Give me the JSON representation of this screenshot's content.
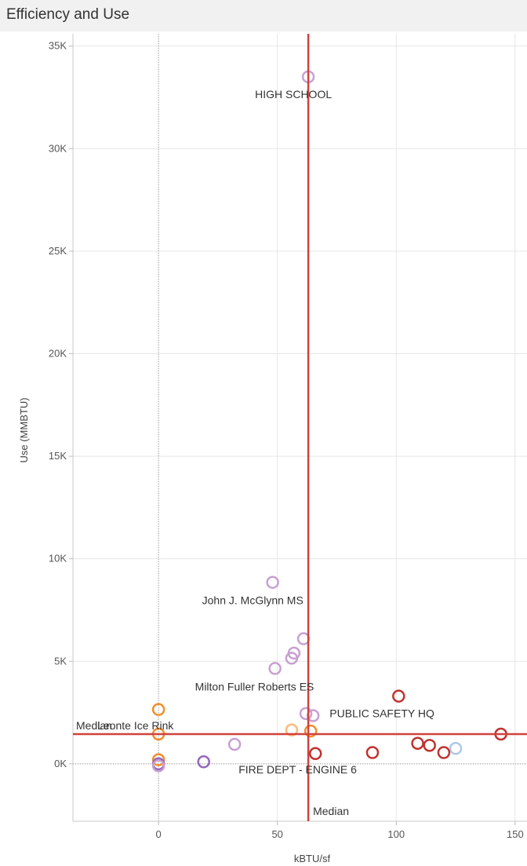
{
  "header": {
    "title": "Efficiency and Use"
  },
  "chart_data": {
    "type": "scatter",
    "title": "Efficiency and Use",
    "xlabel": "kBTU/sf",
    "ylabel": "Use (MMBTU)",
    "xlim": [
      -36,
      155
    ],
    "ylim": [
      -2800,
      35600
    ],
    "x_ticks": [
      {
        "value": 0,
        "label": "0"
      },
      {
        "value": 50,
        "label": "50"
      },
      {
        "value": 100,
        "label": "100"
      },
      {
        "value": 150,
        "label": "150"
      }
    ],
    "y_ticks": [
      {
        "value": 0,
        "label": "0K"
      },
      {
        "value": 5000,
        "label": "5K"
      },
      {
        "value": 10000,
        "label": "10K"
      },
      {
        "value": 15000,
        "label": "15K"
      },
      {
        "value": 20000,
        "label": "20K"
      },
      {
        "value": 25000,
        "label": "25K"
      },
      {
        "value": 30000,
        "label": "30K"
      },
      {
        "value": 35000,
        "label": "35K"
      }
    ],
    "grid": true,
    "median_lines": {
      "x": 63,
      "y": 1450,
      "label": "Median",
      "color": "#d0423c"
    },
    "points": [
      {
        "x": 63,
        "y": 33500,
        "color": "#c8a0d2",
        "label": "HIGH SCHOOL"
      },
      {
        "x": 48,
        "y": 8850,
        "color": "#c8a0d2",
        "label": "John J. McGlynn MS"
      },
      {
        "x": 61,
        "y": 6100,
        "color": "#c8a0d2",
        "label": ""
      },
      {
        "x": 57,
        "y": 5400,
        "color": "#c8a0d2",
        "label": ""
      },
      {
        "x": 56,
        "y": 5150,
        "color": "#c8a0d2",
        "label": ""
      },
      {
        "x": 49,
        "y": 4650,
        "color": "#c8a0d2",
        "label": "Milton Fuller Roberts ES"
      },
      {
        "x": 101,
        "y": 3300,
        "color": "#c0322e",
        "label": "PUBLIC SAFETY HQ"
      },
      {
        "x": 0,
        "y": 2650,
        "color": "#f28e2b",
        "label": ""
      },
      {
        "x": 62,
        "y": 2450,
        "color": "#c8a0d2",
        "label": ""
      },
      {
        "x": 65,
        "y": 2350,
        "color": "#c8a0d2",
        "label": ""
      },
      {
        "x": 56,
        "y": 1650,
        "color": "#ffbb78",
        "label": ""
      },
      {
        "x": 64,
        "y": 1600,
        "color": "#f28e2b",
        "label": ""
      },
      {
        "x": 144,
        "y": 1450,
        "color": "#c0322e",
        "label": ""
      },
      {
        "x": 109,
        "y": 1000,
        "color": "#c0322e",
        "label": ""
      },
      {
        "x": 114,
        "y": 900,
        "color": "#c0322e",
        "label": ""
      },
      {
        "x": 32,
        "y": 950,
        "color": "#c8a0d2",
        "label": ""
      },
      {
        "x": 125,
        "y": 750,
        "color": "#aec7e8",
        "label": ""
      },
      {
        "x": 90,
        "y": 550,
        "color": "#c0322e",
        "label": ""
      },
      {
        "x": 120,
        "y": 550,
        "color": "#c0322e",
        "label": ""
      },
      {
        "x": 66,
        "y": 500,
        "color": "#c0322e",
        "label": "FIRE DEPT - ENGINE 6"
      },
      {
        "x": 0,
        "y": 200,
        "color": "#f28e2b",
        "label": ""
      },
      {
        "x": 19,
        "y": 100,
        "color": "#9467bd",
        "label": ""
      },
      {
        "x": 0,
        "y": 0,
        "color": "#9467bd",
        "label": ""
      },
      {
        "x": 0,
        "y": -100,
        "color": "#c8a0d2",
        "label": ""
      },
      {
        "x": 0,
        "y": 1450,
        "color": "#f28e2b",
        "label": "Leonte Ice Rink"
      }
    ]
  }
}
